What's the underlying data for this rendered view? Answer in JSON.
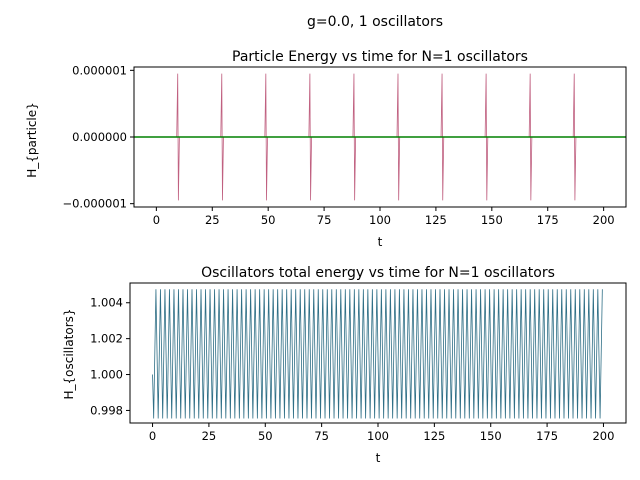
{
  "suptitle": "g=0.0, 1 oscillators",
  "chart_data": [
    {
      "type": "line",
      "title": "Particle Energy vs time for N=1 oscillators",
      "xlabel": "t",
      "ylabel": "H_{particle}",
      "xlim": [
        -10,
        210
      ],
      "ylim": [
        -1.05e-06,
        1.05e-06
      ],
      "xticks": [
        0,
        25,
        50,
        75,
        100,
        125,
        150,
        175,
        200
      ],
      "xtick_labels": [
        "0",
        "25",
        "50",
        "75",
        "100",
        "125",
        "150",
        "175",
        "200"
      ],
      "yticks": [
        -1e-06,
        0.0,
        1e-06
      ],
      "ytick_labels": [
        "−0.000001",
        "0.000000",
        "0.000001"
      ],
      "grid": false,
      "series": [
        {
          "style": "spikes",
          "color": "#c06080",
          "spike_times": [
            9.7,
            29.4,
            49.1,
            68.8,
            88.5,
            108.2,
            127.9,
            147.6,
            167.3,
            187.0
          ],
          "spike_amplitude": 9.5e-07,
          "t_range": [
            0,
            200
          ]
        },
        {
          "style": "flat",
          "color": "#008000",
          "value": 0.0,
          "t_range": [
            -10,
            210
          ]
        }
      ]
    },
    {
      "type": "line",
      "title": "Oscillators total energy vs time for N=1 oscillators",
      "xlabel": "t",
      "ylabel": "H_{oscillators}",
      "xlim": [
        -10,
        210
      ],
      "ylim": [
        0.9973,
        1.0051
      ],
      "xticks": [
        0,
        25,
        50,
        75,
        100,
        125,
        150,
        175,
        200
      ],
      "xtick_labels": [
        "0",
        "25",
        "50",
        "75",
        "100",
        "125",
        "150",
        "175",
        "200"
      ],
      "yticks": [
        0.998,
        1.0,
        1.002,
        1.004
      ],
      "ytick_labels": [
        "0.998",
        "1.000",
        "1.002",
        "1.004"
      ],
      "grid": false,
      "series": [
        {
          "style": "oscillation",
          "color": "#2f6f86",
          "start_value": 1.0,
          "min_value": 0.99755,
          "max_value": 1.00475,
          "period": 2.0,
          "t_range": [
            0,
            200
          ]
        }
      ]
    }
  ]
}
